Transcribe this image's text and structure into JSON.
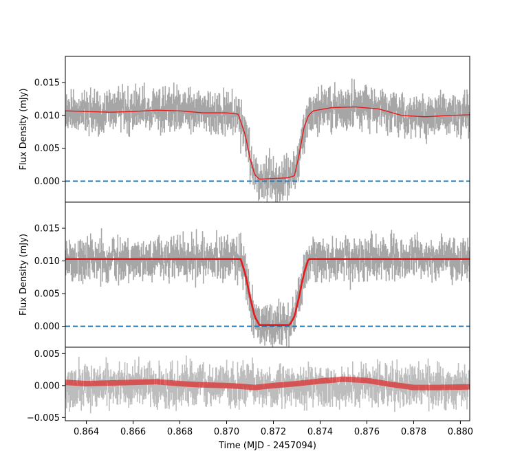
{
  "chart_data": [
    {
      "panel": "top",
      "type": "line",
      "ylabel": "Flux Density (mJy)",
      "xlim": [
        0.8631,
        0.8804
      ],
      "ylim": [
        -0.0032,
        0.019
      ],
      "yticks": [
        0.0,
        0.005,
        0.01,
        0.015
      ],
      "ytick_labels": [
        "0.000",
        "0.005",
        "0.010",
        "0.015"
      ],
      "zero_line": {
        "y": 0.0,
        "style": "dashed",
        "color": "#1f77b4"
      },
      "data_color": "#a6a6a6",
      "model_color": "#e41a1c",
      "model_curve": {
        "x": [
          0.8631,
          0.864,
          0.865,
          0.866,
          0.867,
          0.868,
          0.869,
          0.87,
          0.8705,
          0.8708,
          0.871,
          0.8712,
          0.8714,
          0.872,
          0.8726,
          0.8729,
          0.8731,
          0.8733,
          0.8735,
          0.8737,
          0.8745,
          0.8755,
          0.8765,
          0.8775,
          0.8785,
          0.8795,
          0.8804
        ],
        "y": [
          0.0107,
          0.0106,
          0.0105,
          0.0106,
          0.0108,
          0.0107,
          0.0104,
          0.0104,
          0.0102,
          0.007,
          0.0035,
          0.001,
          0.0003,
          0.0004,
          0.0005,
          0.0008,
          0.004,
          0.008,
          0.01,
          0.0107,
          0.0112,
          0.0113,
          0.011,
          0.01,
          0.0098,
          0.01,
          0.0101
        ]
      }
    },
    {
      "panel": "middle",
      "type": "line",
      "ylabel": "Flux Density (mJy)",
      "xlim": [
        0.8631,
        0.8804
      ],
      "ylim": [
        -0.0032,
        0.019
      ],
      "yticks": [
        0.0,
        0.005,
        0.01,
        0.015
      ],
      "ytick_labels": [
        "0.000",
        "0.005",
        "0.010",
        "0.015"
      ],
      "zero_line": {
        "y": 0.0,
        "style": "dashed",
        "color": "#1f77b4"
      },
      "data_color": "#a6a6a6",
      "model_color": "#e41a1c",
      "model_curve": {
        "x": [
          0.8631,
          0.8706,
          0.8708,
          0.871,
          0.8712,
          0.8714,
          0.8727,
          0.8729,
          0.8731,
          0.8733,
          0.8735,
          0.8804
        ],
        "y": [
          0.0103,
          0.0103,
          0.008,
          0.0045,
          0.0015,
          0.0002,
          0.0002,
          0.0015,
          0.0045,
          0.008,
          0.0103,
          0.0103
        ]
      }
    },
    {
      "panel": "bottom",
      "type": "line",
      "xlabel": "Time (MJD - 2457094)",
      "xlim": [
        0.8631,
        0.8804
      ],
      "ylim": [
        -0.0055,
        0.006
      ],
      "yticks": [
        -0.005,
        0.0,
        0.005
      ],
      "ytick_labels": [
        "−0.005",
        "0.000",
        "0.005"
      ],
      "xticks": [
        0.864,
        0.866,
        0.868,
        0.87,
        0.872,
        0.874,
        0.876,
        0.878,
        0.88
      ],
      "xtick_labels": [
        "0.864",
        "0.866",
        "0.868",
        "0.870",
        "0.872",
        "0.874",
        "0.876",
        "0.878",
        "0.880"
      ],
      "data_color": "#bdbdbd",
      "model_color": "#e41a1c",
      "model_curve": {
        "x": [
          0.8631,
          0.864,
          0.865,
          0.866,
          0.867,
          0.868,
          0.869,
          0.87,
          0.8705,
          0.8712,
          0.872,
          0.873,
          0.874,
          0.875,
          0.876,
          0.877,
          0.878,
          0.879,
          0.8804
        ],
        "y": [
          0.0005,
          0.0003,
          0.0004,
          0.0005,
          0.0006,
          0.0003,
          0.0001,
          0.0,
          -0.0001,
          -0.0003,
          0.0,
          0.0003,
          0.0007,
          0.001,
          0.0008,
          0.0002,
          -0.0003,
          -0.0003,
          -0.0002
        ]
      }
    }
  ]
}
